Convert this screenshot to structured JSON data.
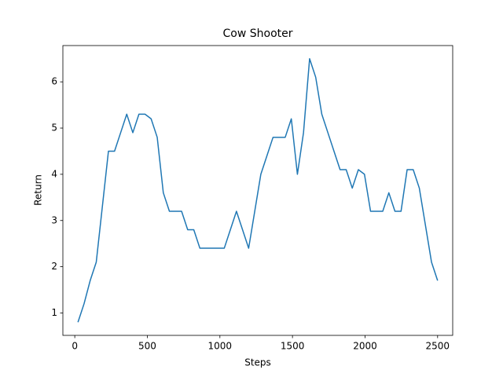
{
  "chart_data": {
    "type": "line",
    "title": "Cow Shooter",
    "x_label": "Steps",
    "y_label": "Return",
    "x": [
      22,
      64,
      106,
      148,
      190,
      232,
      274,
      316,
      358,
      400,
      442,
      484,
      526,
      568,
      610,
      652,
      694,
      736,
      778,
      820,
      862,
      904,
      946,
      988,
      1030,
      1072,
      1114,
      1156,
      1198,
      1240,
      1282,
      1324,
      1366,
      1408,
      1450,
      1492,
      1534,
      1576,
      1618,
      1660,
      1702,
      1744,
      1786,
      1828,
      1870,
      1912,
      1954,
      1996,
      2038,
      2080,
      2122,
      2164,
      2206,
      2248,
      2290,
      2332,
      2374,
      2416,
      2458,
      2500
    ],
    "series": [
      {
        "name": "Return",
        "color": "#1f77b4",
        "values": [
          0.8,
          1.2,
          1.7,
          2.1,
          3.3,
          4.5,
          4.5,
          4.9,
          5.3,
          4.9,
          5.3,
          5.3,
          5.2,
          4.8,
          3.6,
          3.2,
          3.2,
          3.2,
          2.8,
          2.8,
          2.4,
          2.4,
          2.4,
          2.4,
          2.4,
          2.8,
          3.2,
          2.8,
          2.4,
          3.2,
          4.0,
          4.4,
          4.8,
          4.8,
          4.8,
          5.2,
          4.0,
          4.9,
          6.5,
          6.1,
          5.3,
          4.9,
          4.5,
          4.1,
          4.1,
          3.7,
          4.1,
          4.0,
          3.2,
          3.2,
          3.2,
          3.6,
          3.2,
          3.2,
          4.1,
          4.1,
          3.7,
          2.9,
          2.1,
          1.7
        ]
      }
    ],
    "xlim": [
      -82,
      2604
    ],
    "xticks": [
      0,
      500,
      1000,
      1500,
      2000,
      2500
    ],
    "ylim": [
      0.515,
      6.785
    ],
    "yticks": [
      1,
      2,
      3,
      4,
      5,
      6
    ],
    "grid": false
  }
}
